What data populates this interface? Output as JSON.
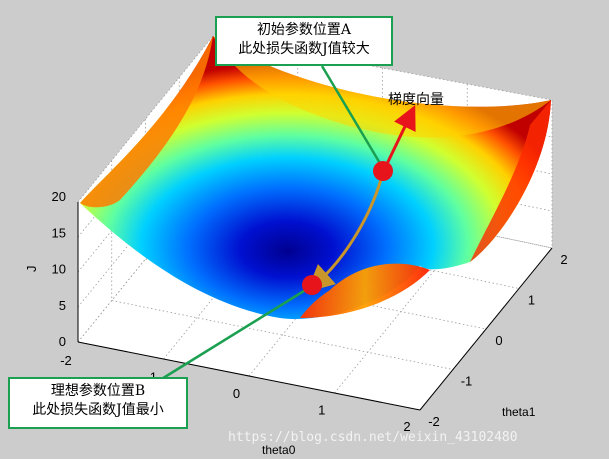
{
  "chart_data": {
    "type": "surface",
    "function": "J = theta0^2 + theta1^2 + c",
    "xlabel": "theta0",
    "ylabel": "theta1",
    "zlabel": "J",
    "xlim": [
      -2,
      2
    ],
    "ylim": [
      -2,
      2
    ],
    "zlim": [
      0,
      20
    ],
    "x_ticks": [
      "-2",
      "-1",
      "0",
      "1",
      "2"
    ],
    "y_ticks": [
      "-2",
      "-1",
      "0",
      "1",
      "2"
    ],
    "z_ticks": [
      "0",
      "5",
      "10",
      "15",
      "20"
    ],
    "grid": true,
    "colormap": "jet",
    "point_a": {
      "theta0": 0.6,
      "theta1": 1.9,
      "J": 11.5
    },
    "point_b": {
      "theta0": 0.3,
      "theta1": 0.3,
      "J": 2.0
    },
    "gradient_label": "梯度向量",
    "annotation_a": [
      "初始参数位置A",
      "此处损失函数J值较大"
    ],
    "annotation_b": [
      "理想参数位置B",
      "此处损失函数J值最小"
    ]
  },
  "colors": {
    "background": "#cccccc",
    "axes_face": "#ffffff",
    "point": "#e8141b",
    "path": "#c8962a",
    "gradient_arrow": "#e8141b",
    "callout_border": "#1aa050"
  },
  "watermark": "https://blog.csdn.net/weixin_43102480"
}
